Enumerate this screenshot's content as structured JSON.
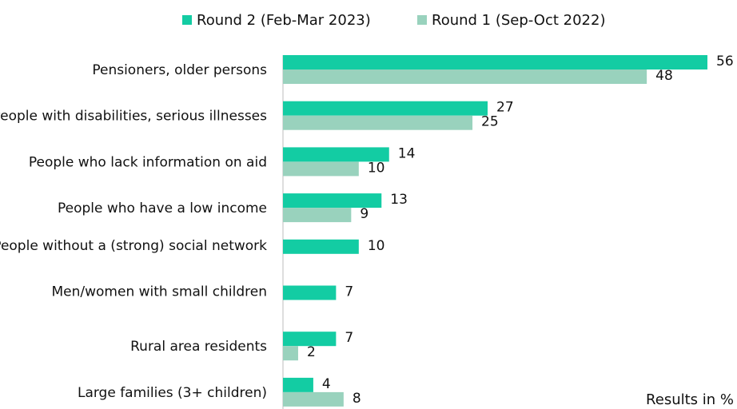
{
  "chart_data": {
    "type": "bar",
    "orientation": "horizontal",
    "categories": [
      "Pensioners, older persons",
      "People with disabilities, serious illnesses",
      "People who lack information on aid",
      "People who have a low income",
      "People without a (strong) social network",
      "Men/women with small children",
      "Rural area residents",
      "Large families (3+ children)"
    ],
    "series": [
      {
        "name": "Round 2 (Feb-Mar 2023)",
        "color": "#13CCA3",
        "values": [
          56,
          27,
          14,
          13,
          10,
          7,
          7,
          4
        ]
      },
      {
        "name": "Round 1 (Sep-Oct 2022)",
        "color": "#99D2BD",
        "values": [
          48,
          25,
          10,
          9,
          null,
          null,
          2,
          8
        ]
      }
    ],
    "xlim": [
      0,
      60
    ],
    "legend": "top",
    "grid": false,
    "note": "Results in %"
  }
}
